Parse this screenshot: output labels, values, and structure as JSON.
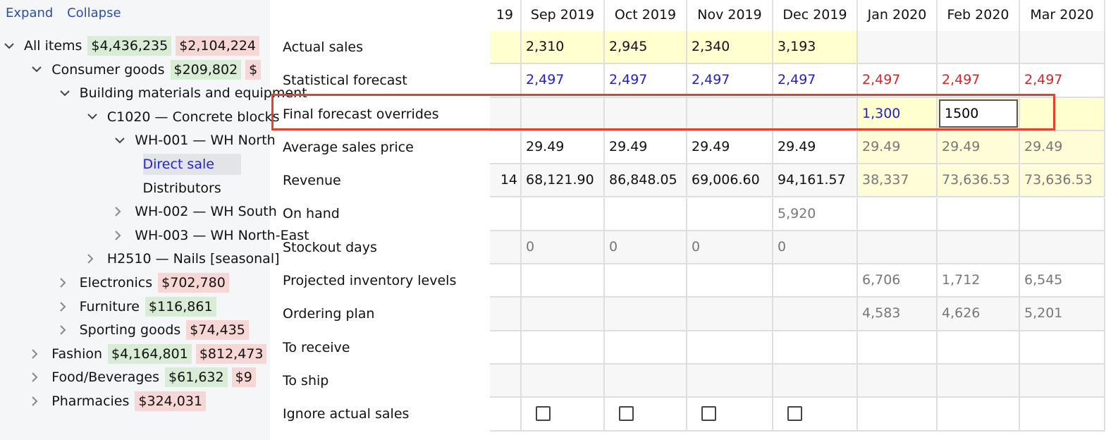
{
  "colors": {
    "green_badge": "#d8ecd6",
    "red_badge": "#f7d7d5",
    "actual_bg": "#ffffd0",
    "future_bg": "#fffdd8",
    "alt_row": "#f7f7f7",
    "blue_text": "#1f1fd6",
    "red_text": "#d42828",
    "gray_text": "#777777",
    "highlight": "#e8412a"
  },
  "toolbar": {
    "expand": "Expand",
    "collapse": "Collapse"
  },
  "tree": [
    {
      "level": 0,
      "open": true,
      "label": "All items",
      "badges": [
        {
          "t": "$4,436,235",
          "c": "g"
        },
        {
          "t": "$2,104,224",
          "c": "r"
        }
      ]
    },
    {
      "level": 1,
      "open": true,
      "label": "Consumer goods",
      "badges": [
        {
          "t": "$209,802",
          "c": "g"
        },
        {
          "t": "$",
          "c": "r"
        }
      ]
    },
    {
      "level": 2,
      "open": true,
      "label": "Building materials and equipment",
      "badges": []
    },
    {
      "level": 3,
      "open": true,
      "label": "C1020 — Concrete blocks",
      "badges": []
    },
    {
      "level": 4,
      "open": true,
      "label": "WH-001 — WH North",
      "badges": []
    },
    {
      "level": 5,
      "leaf": true,
      "selected": true,
      "label": "Direct sale",
      "badges": []
    },
    {
      "level": 5,
      "leaf": true,
      "label": "Distributors",
      "badges": []
    },
    {
      "level": 4,
      "open": false,
      "label": "WH-002 — WH South",
      "badges": []
    },
    {
      "level": 4,
      "open": false,
      "label": "WH-003 — WH North-East",
      "badges": []
    },
    {
      "level": 3,
      "open": false,
      "label": "H2510 — Nails [seasonal]",
      "badges": []
    },
    {
      "level": 2,
      "open": false,
      "label": "Electronics",
      "badges": [
        {
          "t": "$702,780",
          "c": "r"
        }
      ]
    },
    {
      "level": 2,
      "open": false,
      "label": "Furniture",
      "badges": [
        {
          "t": "$116,861",
          "c": "g"
        }
      ]
    },
    {
      "level": 2,
      "open": false,
      "label": "Sporting goods",
      "badges": [
        {
          "t": "$74,435",
          "c": "r"
        }
      ]
    },
    {
      "level": 1,
      "open": false,
      "label": "Fashion",
      "badges": [
        {
          "t": "$4,164,801",
          "c": "g"
        },
        {
          "t": "$812,473",
          "c": "r"
        }
      ]
    },
    {
      "level": 1,
      "open": false,
      "label": "Food/Beverages",
      "badges": [
        {
          "t": "$61,632",
          "c": "g"
        },
        {
          "t": "$9",
          "c": "r"
        }
      ]
    },
    {
      "level": 1,
      "open": false,
      "label": "Pharmacies",
      "badges": [
        {
          "t": "$324,031",
          "c": "r"
        }
      ]
    }
  ],
  "columns": [
    "19",
    "Sep 2019",
    "Oct 2019",
    "Nov 2019",
    "Dec 2019",
    "Jan 2020",
    "Feb 2020",
    "Mar 2020"
  ],
  "rows": [
    {
      "label": "Actual sales",
      "values": [
        "",
        "2,310",
        "2,945",
        "2,340",
        "3,193",
        "",
        "",
        ""
      ],
      "style": "actual"
    },
    {
      "label": "Statistical forecast",
      "values": [
        "",
        "2,497",
        "2,497",
        "2,497",
        "2,497",
        "2,497",
        "2,497",
        "2,497"
      ],
      "style": "stat"
    },
    {
      "label": "Final forecast overrides",
      "values": [
        "",
        "",
        "",
        "",
        "",
        "1,300",
        "",
        ""
      ],
      "input": {
        "col": 6,
        "value": "1500"
      },
      "style": "override"
    },
    {
      "label": "Average sales price",
      "values": [
        "",
        "29.49",
        "29.49",
        "29.49",
        "29.49",
        "29.49",
        "29.49",
        "29.49"
      ],
      "style": "future-yellow"
    },
    {
      "label": "Revenue",
      "values": [
        "14",
        "68,121.90",
        "86,848.05",
        "69,006.60",
        "94,161.57",
        "38,337",
        "73,636.53",
        "73,636.53"
      ],
      "style": "future-yellow"
    },
    {
      "label": "On hand",
      "values": [
        "",
        "",
        "",
        "",
        "5,920",
        "",
        "",
        ""
      ],
      "style": "gray"
    },
    {
      "label": "Stockout days",
      "values": [
        "",
        "0",
        "0",
        "0",
        "0",
        "",
        "",
        ""
      ],
      "style": "gray"
    },
    {
      "label": "Projected inventory levels",
      "values": [
        "",
        "",
        "",
        "",
        "",
        "6,706",
        "1,712",
        "6,545"
      ],
      "style": "gray"
    },
    {
      "label": "Ordering plan",
      "values": [
        "",
        "",
        "",
        "",
        "",
        "4,583",
        "4,626",
        "5,201"
      ],
      "style": "gray"
    },
    {
      "label": "To receive",
      "values": [
        "",
        "",
        "",
        "",
        "",
        "",
        "",
        ""
      ],
      "style": "gray"
    },
    {
      "label": "To ship",
      "values": [
        "",
        "",
        "",
        "",
        "",
        "",
        "",
        ""
      ],
      "style": "gray"
    },
    {
      "label": "Ignore actual sales",
      "checkboxes": [
        false,
        true,
        true,
        true,
        true,
        false,
        false,
        false
      ],
      "checked": [
        false,
        false,
        false,
        false,
        false,
        false,
        false,
        false
      ],
      "style": "check"
    }
  ]
}
